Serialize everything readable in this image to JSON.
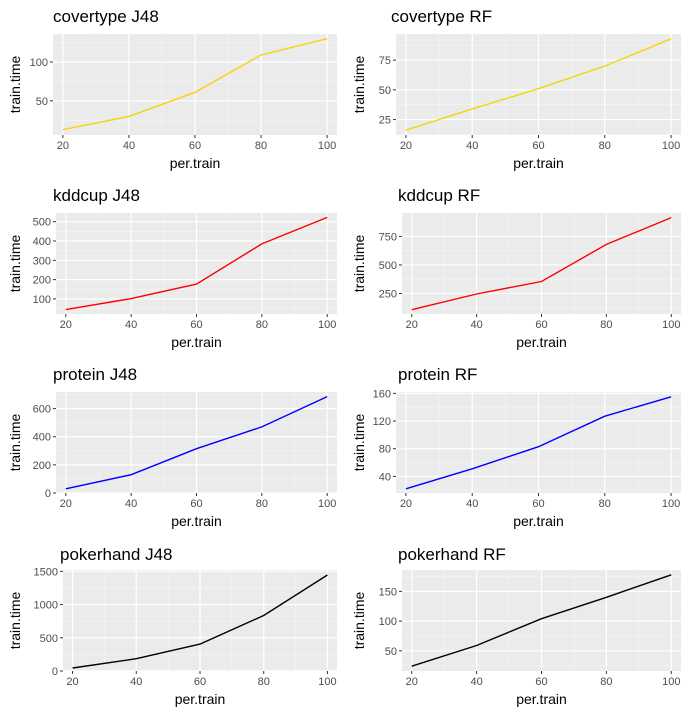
{
  "chart_data": [
    {
      "type": "line",
      "title": "covertype J48",
      "xlabel": "per.train",
      "ylabel": "train.time",
      "color": "#F5D40D",
      "xlim": [
        17,
        103
      ],
      "ylim": [
        6,
        136
      ],
      "x": [
        20,
        40,
        60,
        80,
        100
      ],
      "y": [
        13,
        30,
        61,
        109,
        130
      ],
      "xticks": [
        20,
        40,
        60,
        80,
        100
      ],
      "yticks": [
        50,
        100
      ],
      "grid": true
    },
    {
      "type": "line",
      "title": "covertype RF",
      "xlabel": "per.train",
      "ylabel": "train.time",
      "color": "#F5D40D",
      "xlim": [
        17,
        103
      ],
      "ylim": [
        12,
        97
      ],
      "x": [
        20,
        40,
        60,
        80,
        100
      ],
      "y": [
        16,
        34,
        51,
        70,
        93
      ],
      "xticks": [
        20,
        40,
        60,
        80,
        100
      ],
      "yticks": [
        25,
        50,
        75
      ],
      "grid": true
    },
    {
      "type": "line",
      "title": "kddcup J48",
      "xlabel": "per.train",
      "ylabel": "train.time",
      "color": "#FF0000",
      "xlim": [
        17,
        103
      ],
      "ylim": [
        22,
        545
      ],
      "x": [
        20,
        40,
        60,
        80,
        100
      ],
      "y": [
        45,
        102,
        177,
        385,
        522
      ],
      "xticks": [
        20,
        40,
        60,
        80,
        100
      ],
      "yticks": [
        100,
        200,
        300,
        400,
        500
      ],
      "grid": true
    },
    {
      "type": "line",
      "title": "kddcup RF",
      "xlabel": "per.train",
      "ylabel": "train.time",
      "color": "#FF0000",
      "xlim": [
        17,
        103
      ],
      "ylim": [
        70,
        955
      ],
      "x": [
        20,
        40,
        60,
        80,
        100
      ],
      "y": [
        108,
        245,
        355,
        680,
        915
      ],
      "xticks": [
        20,
        40,
        60,
        80,
        100
      ],
      "yticks": [
        250,
        500,
        750
      ],
      "grid": true
    },
    {
      "type": "line",
      "title": "protein J48",
      "xlabel": "per.train",
      "ylabel": "train.time",
      "color": "#0000FF",
      "xlim": [
        17,
        103
      ],
      "ylim": [
        0,
        718
      ],
      "x": [
        20,
        40,
        60,
        80,
        100
      ],
      "y": [
        30,
        130,
        315,
        470,
        685
      ],
      "xticks": [
        20,
        40,
        60,
        80,
        100
      ],
      "yticks": [
        0,
        200,
        400,
        600
      ],
      "grid": true
    },
    {
      "type": "line",
      "title": "protein RF",
      "xlabel": "per.train",
      "ylabel": "train.time",
      "color": "#0000FF",
      "xlim": [
        17,
        103
      ],
      "ylim": [
        16,
        162
      ],
      "x": [
        20,
        40,
        60,
        80,
        100
      ],
      "y": [
        22,
        51,
        83,
        127,
        155
      ],
      "xticks": [
        20,
        40,
        60,
        80,
        100
      ],
      "yticks": [
        40,
        80,
        120,
        160
      ],
      "grid": true
    },
    {
      "type": "line",
      "title": "pokerhand J48",
      "xlabel": "per.train",
      "ylabel": "train.time",
      "color": "#000000",
      "xlim": [
        17,
        103
      ],
      "ylim": [
        0,
        1520
      ],
      "x": [
        20,
        40,
        60,
        80,
        100
      ],
      "y": [
        45,
        185,
        405,
        835,
        1445
      ],
      "xticks": [
        20,
        40,
        60,
        80,
        100
      ],
      "yticks": [
        0,
        500,
        1000,
        1500
      ],
      "grid": true
    },
    {
      "type": "line",
      "title": "pokerhand RF",
      "xlabel": "per.train",
      "ylabel": "train.time",
      "color": "#000000",
      "xlim": [
        17,
        103
      ],
      "ylim": [
        16,
        186
      ],
      "x": [
        20,
        40,
        60,
        80,
        100
      ],
      "y": [
        24,
        59,
        104,
        140,
        178
      ],
      "xticks": [
        20,
        40,
        60,
        80,
        100
      ],
      "yticks": [
        50,
        100,
        150
      ],
      "grid": true
    }
  ]
}
